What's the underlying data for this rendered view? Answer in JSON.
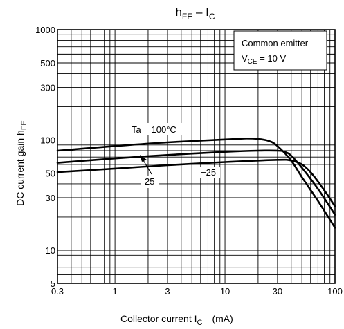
{
  "chart_data": {
    "type": "line",
    "title_main": "h",
    "title_main_sub": "FE",
    "title_sep": " – I",
    "title_sep_sub": "C",
    "xlabel_main": "Collector current  I",
    "xlabel_sub": "C",
    "xlabel_unit": "(mA)",
    "ylabel_main": "DC current gain  h",
    "ylabel_sub": "FE",
    "x_scale": "log",
    "y_scale": "log",
    "xlim": [
      0.3,
      100
    ],
    "ylim": [
      5,
      1000
    ],
    "x_ticks": [
      {
        "value": 0.3,
        "label": "0.3"
      },
      {
        "value": 1,
        "label": "1"
      },
      {
        "value": 3,
        "label": "3"
      },
      {
        "value": 10,
        "label": "10"
      },
      {
        "value": 30,
        "label": "30"
      },
      {
        "value": 100,
        "label": "100"
      }
    ],
    "y_ticks": [
      {
        "value": 5,
        "label": "5"
      },
      {
        "value": 10,
        "label": "10"
      },
      {
        "value": 30,
        "label": "30"
      },
      {
        "value": 50,
        "label": "50"
      },
      {
        "value": 100,
        "label": "100"
      },
      {
        "value": 300,
        "label": "300"
      },
      {
        "value": 500,
        "label": "500"
      },
      {
        "value": 1000,
        "label": "1000"
      }
    ],
    "grid": true,
    "legend_box": {
      "line1": "Common emitter",
      "line2_main": "V",
      "line2_sub": "CE",
      "line2_rest": " = 10 V",
      "placement": "top-right"
    },
    "series": [
      {
        "name": "Ta = 100°C",
        "points": [
          [
            0.3,
            80
          ],
          [
            1,
            88
          ],
          [
            3,
            95
          ],
          [
            10,
            101
          ],
          [
            15,
            103
          ],
          [
            20,
            102
          ],
          [
            25,
            98
          ],
          [
            30,
            88
          ],
          [
            40,
            65
          ],
          [
            50,
            46
          ],
          [
            70,
            28
          ],
          [
            100,
            16
          ]
        ]
      },
      {
        "name": "25",
        "points": [
          [
            0.3,
            62
          ],
          [
            1,
            68
          ],
          [
            3,
            73
          ],
          [
            10,
            78
          ],
          [
            20,
            80
          ],
          [
            30,
            80
          ],
          [
            35,
            78
          ],
          [
            40,
            72
          ],
          [
            50,
            56
          ],
          [
            70,
            36
          ],
          [
            100,
            21
          ]
        ]
      },
      {
        "name": "−25",
        "points": [
          [
            0.3,
            51
          ],
          [
            1,
            55
          ],
          [
            3,
            59
          ],
          [
            10,
            63
          ],
          [
            30,
            66
          ],
          [
            40,
            65
          ],
          [
            50,
            60
          ],
          [
            60,
            51
          ],
          [
            70,
            42
          ],
          [
            85,
            32
          ],
          [
            100,
            25
          ]
        ]
      }
    ],
    "annotations": [
      {
        "text": "Ta = 100°C"
      },
      {
        "text": "25"
      },
      {
        "text": "−25"
      }
    ]
  }
}
